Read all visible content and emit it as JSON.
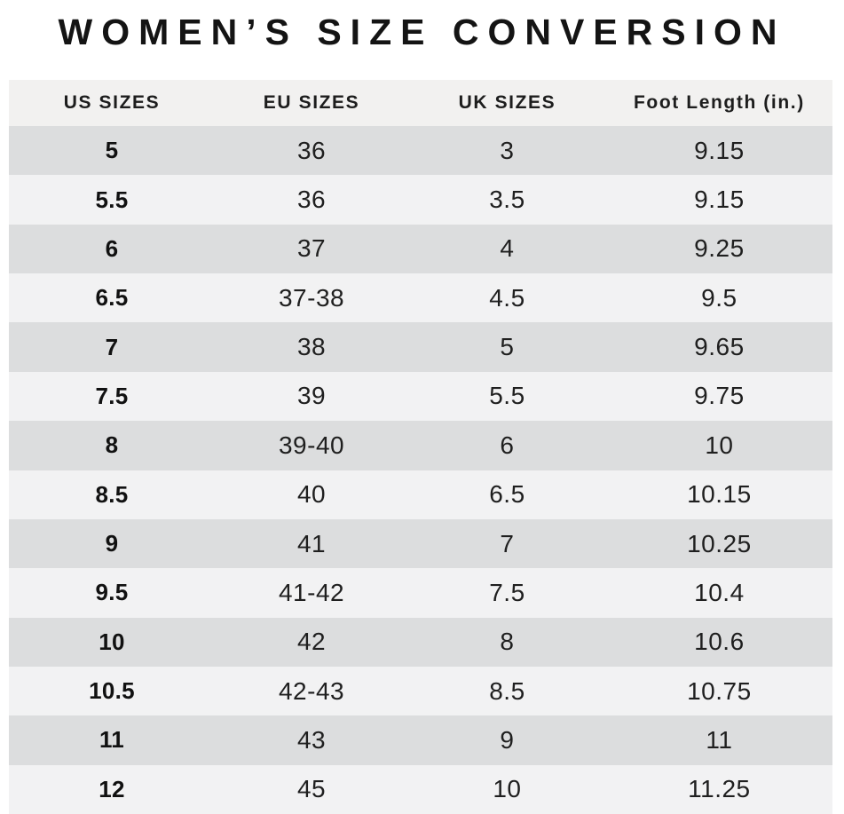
{
  "title": "WOMEN’S SIZE CONVERSION",
  "colors": {
    "header_bg": "#f2f1f0",
    "row_dark": "#dcddde",
    "row_light": "#f2f2f3",
    "text": "#1f1f1f"
  },
  "chart_data": {
    "type": "table",
    "title": "WOMEN’S SIZE CONVERSION",
    "columns": [
      "US SIZES",
      "EU SIZES",
      "UK SIZES",
      "Foot Length (in.)"
    ],
    "rows": [
      [
        "5",
        "36",
        "3",
        "9.15"
      ],
      [
        "5.5",
        "36",
        "3.5",
        "9.15"
      ],
      [
        "6",
        "37",
        "4",
        "9.25"
      ],
      [
        "6.5",
        "37-38",
        "4.5",
        "9.5"
      ],
      [
        "7",
        "38",
        "5",
        "9.65"
      ],
      [
        "7.5",
        "39",
        "5.5",
        "9.75"
      ],
      [
        "8",
        "39-40",
        "6",
        "10"
      ],
      [
        "8.5",
        "40",
        "6.5",
        "10.15"
      ],
      [
        "9",
        "41",
        "7",
        "10.25"
      ],
      [
        "9.5",
        "41-42",
        "7.5",
        "10.4"
      ],
      [
        "10",
        "42",
        "8",
        "10.6"
      ],
      [
        "10.5",
        "42-43",
        "8.5",
        "10.75"
      ],
      [
        "11",
        "43",
        "9",
        "11"
      ],
      [
        "12",
        "45",
        "10",
        "11.25"
      ]
    ],
    "layout": {
      "row_striping": "first-row-dark, alternating",
      "us_column_bold": true,
      "grid": false
    }
  }
}
